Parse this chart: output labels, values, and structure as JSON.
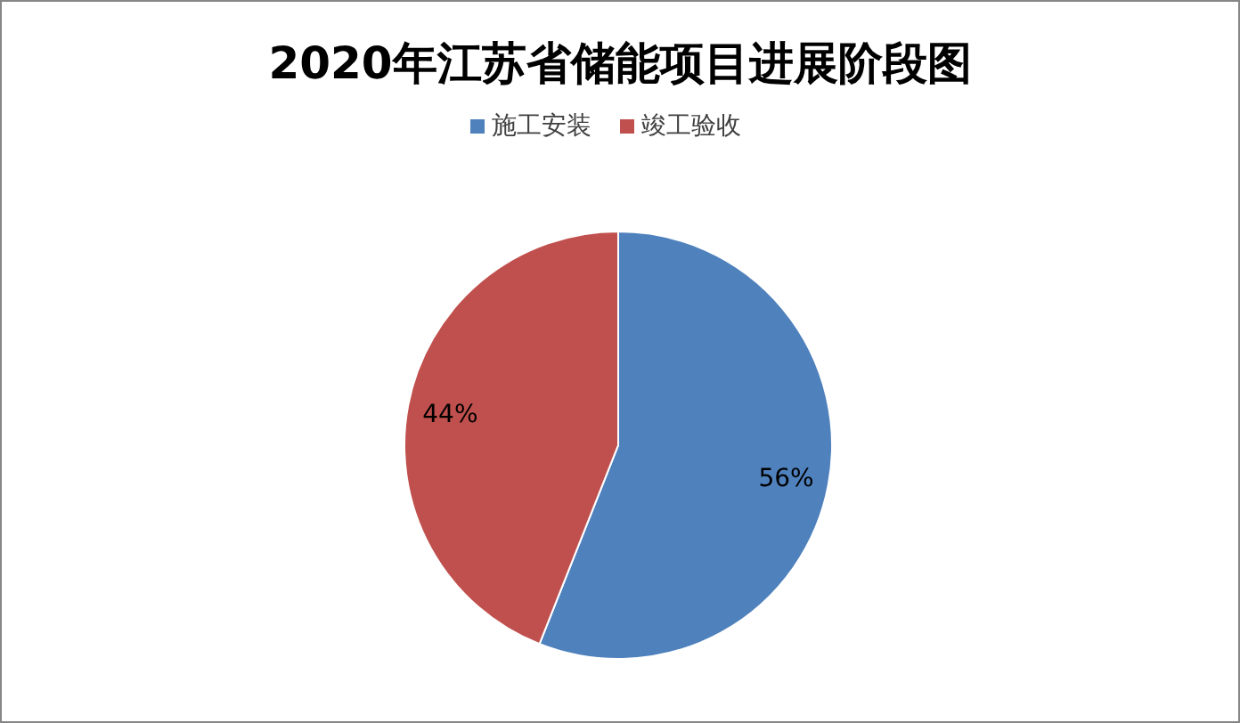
{
  "chart_data": {
    "type": "pie",
    "title": "2020年江苏省储能项目进展阶段图",
    "categories": [
      "施工安装",
      "竣工验收"
    ],
    "values": [
      56,
      44
    ],
    "colors": [
      "#4f81bd",
      "#c0504d"
    ],
    "value_labels": [
      "56%",
      "44%"
    ],
    "legend": "top"
  }
}
